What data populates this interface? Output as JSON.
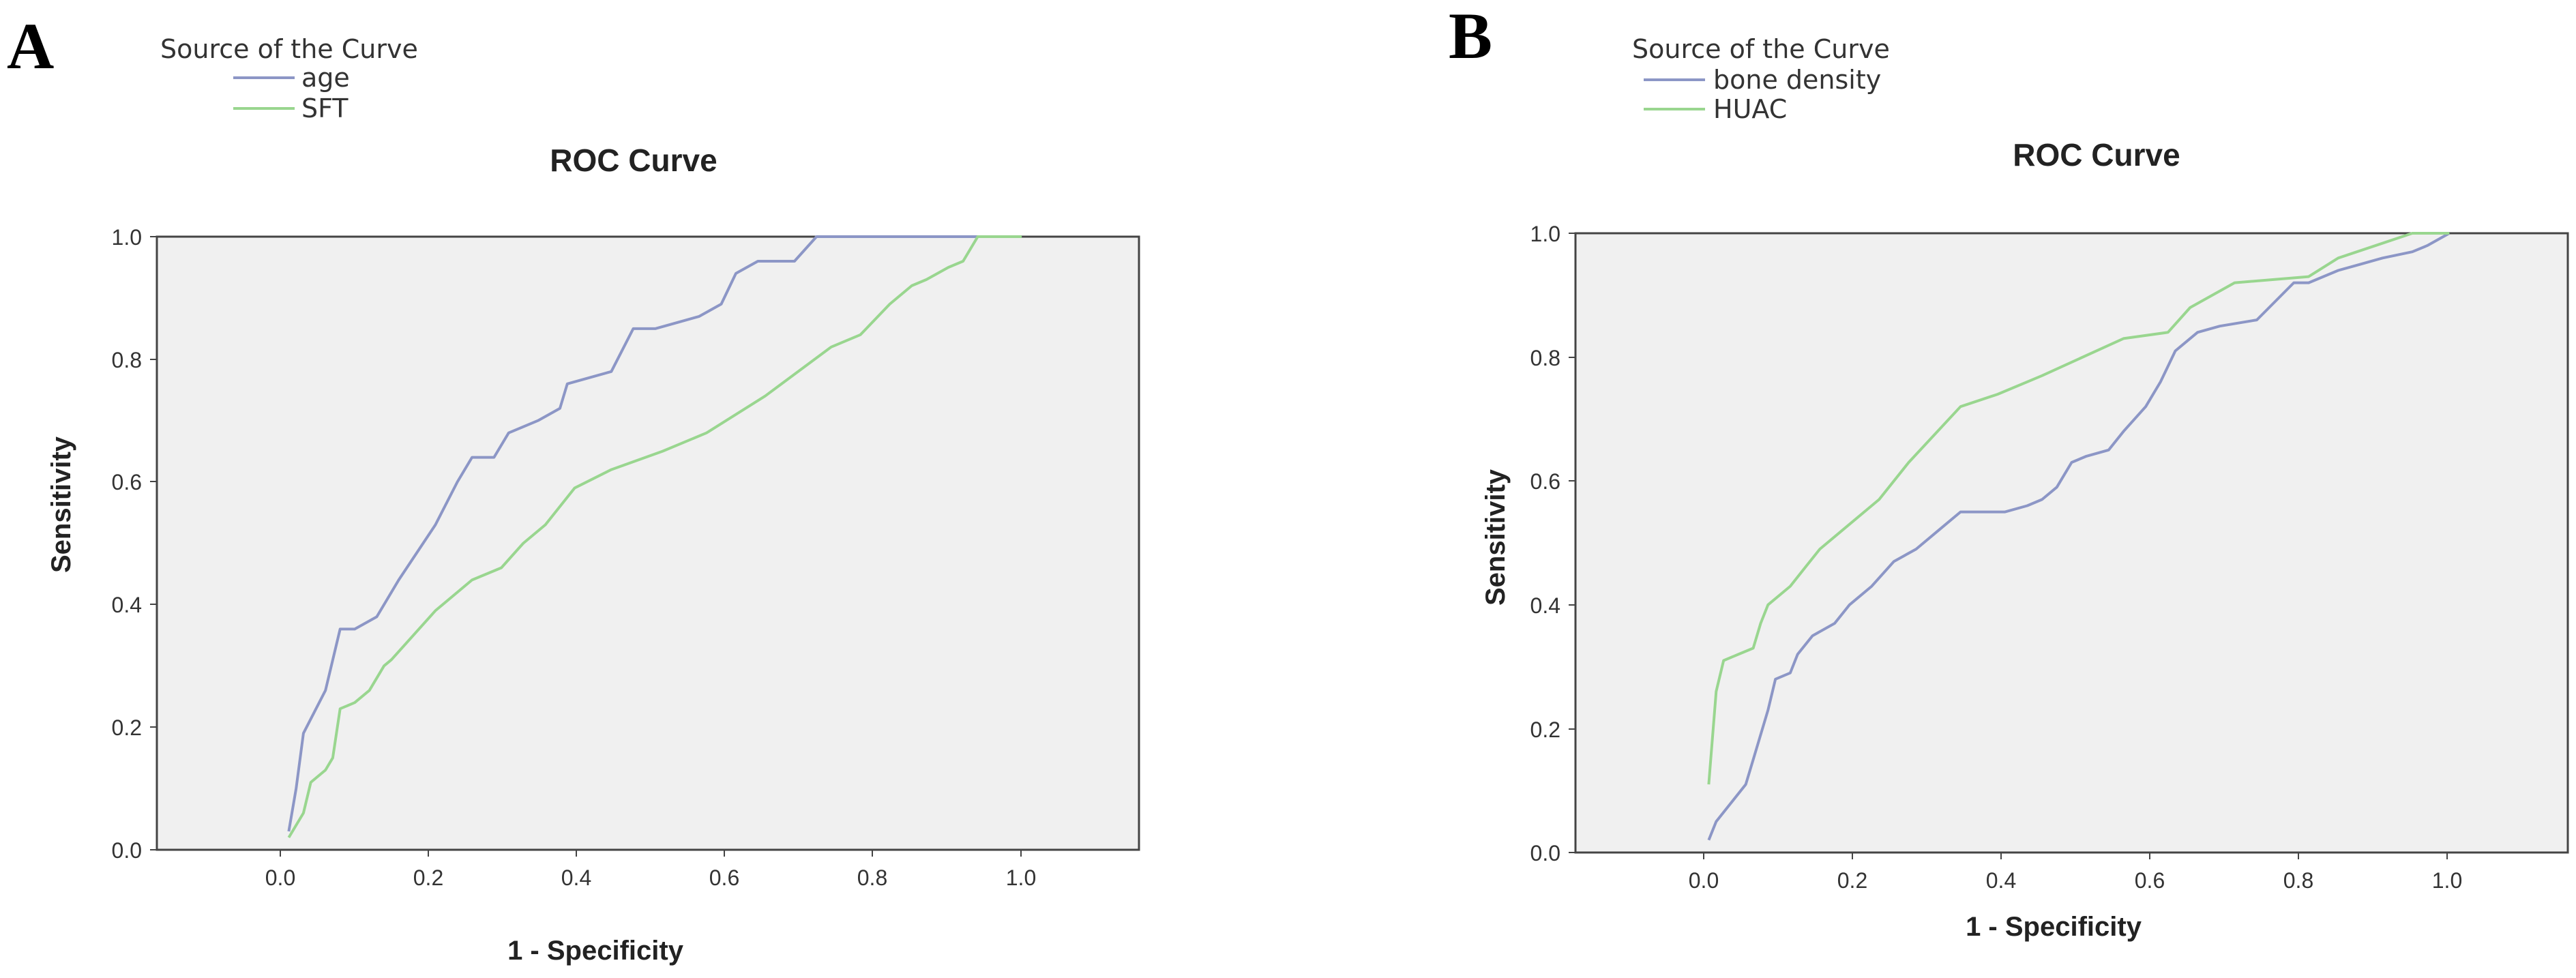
{
  "chart_data": [
    {
      "type": "line",
      "panel_label": "A",
      "title": "ROC Curve",
      "xlabel": "1 - Specificity",
      "ylabel": "Sensitivity",
      "legend_title": "Source of the Curve",
      "legend_position": "top-left",
      "xlim": [
        -0.18,
        1.16
      ],
      "ylim": [
        0,
        1
      ],
      "x_ticks": [
        "0.0",
        "0.2",
        "0.4",
        "0.6",
        "0.8",
        "1.0"
      ],
      "y_ticks": [
        "0.0",
        "0.2",
        "0.4",
        "0.6",
        "0.8",
        "1.0"
      ],
      "grid": false,
      "plot_background": "#f0f0f0",
      "series": [
        {
          "name": "age",
          "color": "#8c96c6",
          "points": [
            [
              0,
              0.03
            ],
            [
              0.01,
              0.1
            ],
            [
              0.02,
              0.19
            ],
            [
              0.05,
              0.26
            ],
            [
              0.07,
              0.36
            ],
            [
              0.09,
              0.36
            ],
            [
              0.12,
              0.38
            ],
            [
              0.15,
              0.44
            ],
            [
              0.2,
              0.53
            ],
            [
              0.23,
              0.6
            ],
            [
              0.25,
              0.64
            ],
            [
              0.28,
              0.64
            ],
            [
              0.3,
              0.68
            ],
            [
              0.34,
              0.7
            ],
            [
              0.37,
              0.72
            ],
            [
              0.38,
              0.76
            ],
            [
              0.41,
              0.77
            ],
            [
              0.44,
              0.78
            ],
            [
              0.47,
              0.85
            ],
            [
              0.5,
              0.85
            ],
            [
              0.53,
              0.86
            ],
            [
              0.56,
              0.87
            ],
            [
              0.59,
              0.89
            ],
            [
              0.61,
              0.94
            ],
            [
              0.64,
              0.96
            ],
            [
              0.69,
              0.96
            ],
            [
              0.72,
              1.0
            ],
            [
              1.0,
              1.0
            ]
          ]
        },
        {
          "name": "SFT",
          "color": "#99d68f",
          "points": [
            [
              0,
              0.02
            ],
            [
              0.02,
              0.06
            ],
            [
              0.03,
              0.11
            ],
            [
              0.05,
              0.13
            ],
            [
              0.06,
              0.15
            ],
            [
              0.07,
              0.23
            ],
            [
              0.09,
              0.24
            ],
            [
              0.11,
              0.26
            ],
            [
              0.13,
              0.3
            ],
            [
              0.14,
              0.31
            ],
            [
              0.17,
              0.35
            ],
            [
              0.2,
              0.39
            ],
            [
              0.25,
              0.44
            ],
            [
              0.29,
              0.46
            ],
            [
              0.32,
              0.5
            ],
            [
              0.35,
              0.53
            ],
            [
              0.39,
              0.59
            ],
            [
              0.44,
              0.62
            ],
            [
              0.51,
              0.65
            ],
            [
              0.57,
              0.68
            ],
            [
              0.65,
              0.74
            ],
            [
              0.74,
              0.82
            ],
            [
              0.78,
              0.84
            ],
            [
              0.82,
              0.89
            ],
            [
              0.85,
              0.92
            ],
            [
              0.87,
              0.93
            ],
            [
              0.9,
              0.95
            ],
            [
              0.92,
              0.96
            ],
            [
              0.94,
              1.0
            ],
            [
              1.0,
              1.0
            ]
          ]
        }
      ]
    },
    {
      "type": "line",
      "panel_label": "B",
      "title": "ROC Curve",
      "xlabel": "1 - Specificity",
      "ylabel": "Sensitivity",
      "legend_title": "Source of the Curve",
      "legend_position": "top-left",
      "xlim": [
        -0.18,
        1.16
      ],
      "ylim": [
        0,
        1
      ],
      "x_ticks": [
        "0.0",
        "0.2",
        "0.4",
        "0.6",
        "0.8",
        "1.0"
      ],
      "y_ticks": [
        "0.0",
        "0.2",
        "0.4",
        "0.6",
        "0.8",
        "1.0"
      ],
      "grid": false,
      "plot_background": "#f0f0f0",
      "series": [
        {
          "name": "bone density",
          "color": "#8c96c6",
          "points": [
            [
              0,
              0.02
            ],
            [
              0.01,
              0.05
            ],
            [
              0.03,
              0.08
            ],
            [
              0.05,
              0.11
            ],
            [
              0.06,
              0.15
            ],
            [
              0.08,
              0.23
            ],
            [
              0.09,
              0.28
            ],
            [
              0.11,
              0.29
            ],
            [
              0.12,
              0.32
            ],
            [
              0.14,
              0.35
            ],
            [
              0.17,
              0.37
            ],
            [
              0.19,
              0.4
            ],
            [
              0.22,
              0.43
            ],
            [
              0.25,
              0.47
            ],
            [
              0.28,
              0.49
            ],
            [
              0.31,
              0.52
            ],
            [
              0.34,
              0.55
            ],
            [
              0.4,
              0.55
            ],
            [
              0.43,
              0.56
            ],
            [
              0.45,
              0.57
            ],
            [
              0.47,
              0.59
            ],
            [
              0.49,
              0.63
            ],
            [
              0.51,
              0.64
            ],
            [
              0.54,
              0.65
            ],
            [
              0.56,
              0.68
            ],
            [
              0.59,
              0.72
            ],
            [
              0.61,
              0.76
            ],
            [
              0.63,
              0.81
            ],
            [
              0.66,
              0.84
            ],
            [
              0.69,
              0.85
            ],
            [
              0.74,
              0.86
            ],
            [
              0.79,
              0.92
            ],
            [
              0.81,
              0.92
            ],
            [
              0.85,
              0.94
            ],
            [
              0.88,
              0.95
            ],
            [
              0.91,
              0.96
            ],
            [
              0.95,
              0.97
            ],
            [
              0.97,
              0.98
            ],
            [
              1.0,
              1.0
            ]
          ]
        },
        {
          "name": "HUAC",
          "color": "#99d68f",
          "points": [
            [
              0,
              0.11
            ],
            [
              0.01,
              0.26
            ],
            [
              0.02,
              0.31
            ],
            [
              0.04,
              0.32
            ],
            [
              0.06,
              0.33
            ],
            [
              0.07,
              0.37
            ],
            [
              0.08,
              0.4
            ],
            [
              0.11,
              0.43
            ],
            [
              0.13,
              0.46
            ],
            [
              0.15,
              0.49
            ],
            [
              0.18,
              0.52
            ],
            [
              0.23,
              0.57
            ],
            [
              0.27,
              0.63
            ],
            [
              0.34,
              0.72
            ],
            [
              0.39,
              0.74
            ],
            [
              0.45,
              0.77
            ],
            [
              0.56,
              0.83
            ],
            [
              0.62,
              0.84
            ],
            [
              0.65,
              0.88
            ],
            [
              0.71,
              0.92
            ],
            [
              0.81,
              0.93
            ],
            [
              0.85,
              0.96
            ],
            [
              0.9,
              0.98
            ],
            [
              0.95,
              1.0
            ],
            [
              1.0,
              1.0
            ]
          ]
        }
      ]
    }
  ]
}
